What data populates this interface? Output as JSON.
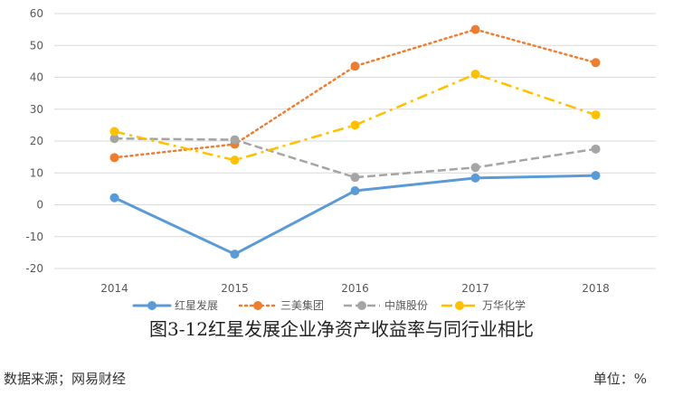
{
  "chart_data": {
    "type": "line",
    "title": "图3-12红星发展企业净资产收益率与同行业相比",
    "categories": [
      "2014",
      "2015",
      "2016",
      "2017",
      "2018"
    ],
    "ylim": [
      -20,
      60
    ],
    "yticks": [
      -20,
      -10,
      0,
      10,
      20,
      30,
      40,
      50,
      60
    ],
    "grid": true,
    "legend_position": "bottom",
    "series": [
      {
        "name": "红星发展",
        "values": [
          2.2,
          -15.5,
          4.4,
          8.4,
          9.2
        ],
        "color": "#5b9bd5",
        "style": "solid"
      },
      {
        "name": "三美集团",
        "values": [
          14.8,
          19.0,
          43.5,
          55.0,
          44.6
        ],
        "color": "#ed7d31",
        "style": "dotted"
      },
      {
        "name": "中旗股份",
        "values": [
          20.8,
          20.4,
          8.6,
          11.7,
          17.5
        ],
        "color": "#a5a5a5",
        "style": "dashed"
      },
      {
        "name": "万华化学",
        "values": [
          23.0,
          14.0,
          25.0,
          41.0,
          28.2
        ],
        "color": "#ffc000",
        "style": "dashdot"
      }
    ]
  },
  "footer": {
    "source": "数据来源；网易财经",
    "unit": "单位：%"
  }
}
